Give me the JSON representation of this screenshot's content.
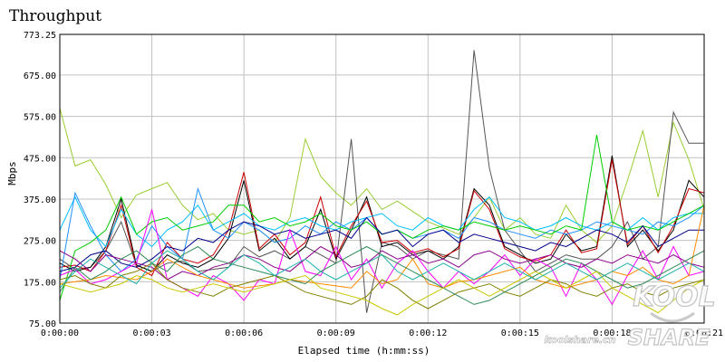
{
  "chart_data": {
    "type": "line",
    "title": "Throughput",
    "xlabel": "Elapsed time (h:mm:ss)",
    "ylabel": "Mbps",
    "ylim": [
      75.0,
      773.25
    ],
    "xlim": [
      0,
      21
    ],
    "x_unit": "seconds",
    "grid": true,
    "legend": "none",
    "y_ticks": [
      "773.25",
      "675.00",
      "575.00",
      "475.00",
      "375.00",
      "275.00",
      "175.00",
      "75.00"
    ],
    "x_ticks": [
      {
        "value": 0,
        "label": "0:00:00"
      },
      {
        "value": 3,
        "label": "0:00:03"
      },
      {
        "value": 6,
        "label": "0:00:06"
      },
      {
        "value": 9,
        "label": "0:00:09"
      },
      {
        "value": 12,
        "label": "0:00:12"
      },
      {
        "value": 15,
        "label": "0:00:15"
      },
      {
        "value": 18,
        "label": "0:00:18"
      },
      {
        "value": 21,
        "label": "0:00:21"
      }
    ],
    "x": [
      0,
      0.5,
      1,
      1.5,
      2,
      2.5,
      3,
      3.5,
      4,
      4.5,
      5,
      5.5,
      6,
      6.5,
      7,
      7.5,
      8,
      8.5,
      9,
      9.5,
      10,
      10.5,
      11,
      11.5,
      12,
      12.5,
      13,
      13.5,
      14,
      14.5,
      15,
      15.5,
      16,
      16.5,
      17,
      17.5,
      18,
      18.5,
      19,
      19.5,
      20,
      20.5,
      21
    ],
    "series": [
      {
        "color": "#9acd32",
        "values": [
          595,
          455,
          470,
          410,
          330,
          385,
          400,
          415,
          360,
          325,
          340,
          300,
          290,
          300,
          270,
          330,
          520,
          430,
          390,
          360,
          400,
          350,
          370,
          345,
          320,
          305,
          290,
          330,
          380,
          300,
          330,
          290,
          280,
          360,
          300,
          270,
          310,
          420,
          540,
          380,
          560,
          470,
          350
        ]
      },
      {
        "color": "#555555",
        "values": [
          230,
          205,
          210,
          250,
          320,
          215,
          200,
          220,
          225,
          200,
          205,
          210,
          260,
          235,
          250,
          230,
          260,
          240,
          220,
          520,
          100,
          270,
          260,
          230,
          250,
          240,
          230,
          735,
          450,
          300,
          250,
          200,
          220,
          240,
          230,
          230,
          260,
          320,
          230,
          260,
          585,
          510,
          510
        ]
      },
      {
        "color": "#000000",
        "values": [
          220,
          200,
          210,
          260,
          375,
          215,
          200,
          240,
          220,
          210,
          230,
          280,
          420,
          250,
          280,
          230,
          260,
          350,
          230,
          300,
          380,
          260,
          270,
          240,
          250,
          230,
          260,
          400,
          360,
          260,
          240,
          220,
          230,
          290,
          250,
          260,
          480,
          260,
          300,
          250,
          300,
          420,
          380
        ]
      },
      {
        "color": "#cc0000",
        "values": [
          210,
          215,
          200,
          250,
          360,
          210,
          190,
          270,
          230,
          220,
          240,
          300,
          440,
          255,
          290,
          240,
          270,
          380,
          235,
          310,
          370,
          270,
          275,
          245,
          255,
          235,
          255,
          395,
          350,
          255,
          235,
          225,
          240,
          300,
          245,
          255,
          470,
          265,
          310,
          245,
          310,
          400,
          390
        ]
      },
      {
        "color": "#00bfff",
        "values": [
          300,
          380,
          300,
          260,
          350,
          290,
          260,
          300,
          320,
          360,
          300,
          320,
          340,
          310,
          300,
          320,
          330,
          310,
          300,
          320,
          330,
          340,
          310,
          300,
          330,
          310,
          300,
          350,
          380,
          330,
          320,
          300,
          310,
          330,
          310,
          300,
          320,
          300,
          330,
          300,
          330,
          340,
          340
        ]
      },
      {
        "color": "#1e90ff",
        "values": [
          180,
          390,
          310,
          240,
          200,
          230,
          310,
          260,
          230,
          400,
          300,
          280,
          320,
          300,
          270,
          280,
          310,
          290,
          320,
          300,
          330,
          290,
          300,
          280,
          290,
          300,
          280,
          330,
          320,
          300,
          290,
          280,
          300,
          290,
          300,
          320,
          310,
          300,
          290,
          320,
          310,
          330,
          360
        ]
      },
      {
        "color": "#00cc00",
        "values": [
          130,
          250,
          270,
          300,
          380,
          290,
          320,
          330,
          300,
          310,
          320,
          360,
          360,
          320,
          330,
          310,
          320,
          340,
          310,
          300,
          320,
          290,
          300,
          280,
          300,
          310,
          300,
          320,
          310,
          300,
          310,
          300,
          290,
          310,
          300,
          530,
          320,
          300,
          310,
          300,
          320,
          340,
          360
        ]
      },
      {
        "color": "#00008b",
        "values": [
          200,
          210,
          240,
          250,
          220,
          210,
          230,
          260,
          250,
          280,
          270,
          300,
          320,
          310,
          290,
          300,
          280,
          290,
          300,
          280,
          330,
          290,
          300,
          260,
          290,
          300,
          270,
          290,
          280,
          270,
          260,
          250,
          270,
          260,
          280,
          300,
          290,
          270,
          310,
          260,
          280,
          300,
          300
        ]
      },
      {
        "color": "#ff00ff",
        "values": [
          190,
          205,
          170,
          180,
          200,
          220,
          350,
          180,
          160,
          140,
          190,
          170,
          130,
          180,
          170,
          300,
          200,
          190,
          260,
          180,
          230,
          160,
          220,
          250,
          200,
          160,
          200,
          170,
          200,
          240,
          190,
          230,
          210,
          140,
          220,
          180,
          120,
          190,
          250,
          180,
          260,
          190,
          200
        ]
      },
      {
        "color": "#8b008b",
        "values": [
          250,
          230,
          200,
          240,
          230,
          220,
          210,
          180,
          200,
          190,
          210,
          220,
          240,
          230,
          210,
          200,
          230,
          260,
          240,
          210,
          220,
          250,
          230,
          240,
          220,
          230,
          210,
          240,
          250,
          230,
          220,
          230,
          240,
          220,
          210,
          230,
          220,
          240,
          230,
          220,
          240,
          220,
          210
        ]
      },
      {
        "color": "#ff8c00",
        "values": [
          170,
          175,
          180,
          190,
          185,
          180,
          200,
          230,
          210,
          190,
          180,
          170,
          160,
          165,
          170,
          180,
          175,
          170,
          165,
          160,
          200,
          170,
          180,
          230,
          170,
          160,
          175,
          180,
          190,
          200,
          210,
          180,
          170,
          160,
          170,
          180,
          200,
          190,
          210,
          180,
          170,
          190,
          360
        ]
      },
      {
        "color": "#808000",
        "values": [
          180,
          190,
          170,
          160,
          190,
          200,
          220,
          180,
          160,
          150,
          140,
          160,
          170,
          180,
          190,
          170,
          150,
          140,
          130,
          120,
          140,
          180,
          160,
          130,
          110,
          130,
          150,
          160,
          170,
          150,
          140,
          160,
          180,
          170,
          150,
          140,
          160,
          170,
          150,
          140,
          160,
          170,
          180
        ]
      },
      {
        "color": "#2e8b57",
        "values": [
          150,
          210,
          180,
          200,
          230,
          250,
          220,
          200,
          240,
          260,
          230,
          220,
          210,
          200,
          190,
          180,
          170,
          200,
          220,
          240,
          260,
          240,
          220,
          200,
          180,
          160,
          140,
          120,
          130,
          150,
          170,
          190,
          210,
          230,
          220,
          200,
          180,
          160,
          170,
          190,
          210,
          230,
          250
        ]
      },
      {
        "color": "#c8c800",
        "values": [
          170,
          160,
          150,
          160,
          170,
          190,
          180,
          160,
          150,
          160,
          170,
          160,
          150,
          160,
          170,
          180,
          190,
          160,
          150,
          140,
          130,
          110,
          95,
          120,
          140,
          160,
          180,
          160,
          140,
          160,
          180,
          200,
          180,
          160,
          180,
          200,
          160,
          140,
          120,
          100,
          130,
          160,
          180
        ]
      },
      {
        "color": "#20b2aa",
        "values": [
          160,
          200,
          230,
          210,
          190,
          170,
          220,
          250,
          230,
          200,
          180,
          210,
          240,
          220,
          190,
          210,
          230,
          200,
          180,
          200,
          220,
          240,
          200,
          180,
          200,
          220,
          200,
          180,
          200,
          220,
          200,
          180,
          200,
          220,
          200,
          180,
          200,
          220,
          200,
          180,
          200,
          220,
          200
        ]
      }
    ]
  },
  "watermark": {
    "logo_top": "KOOL",
    "logo_bottom": "SHARE",
    "url": "koolshare.cn"
  }
}
